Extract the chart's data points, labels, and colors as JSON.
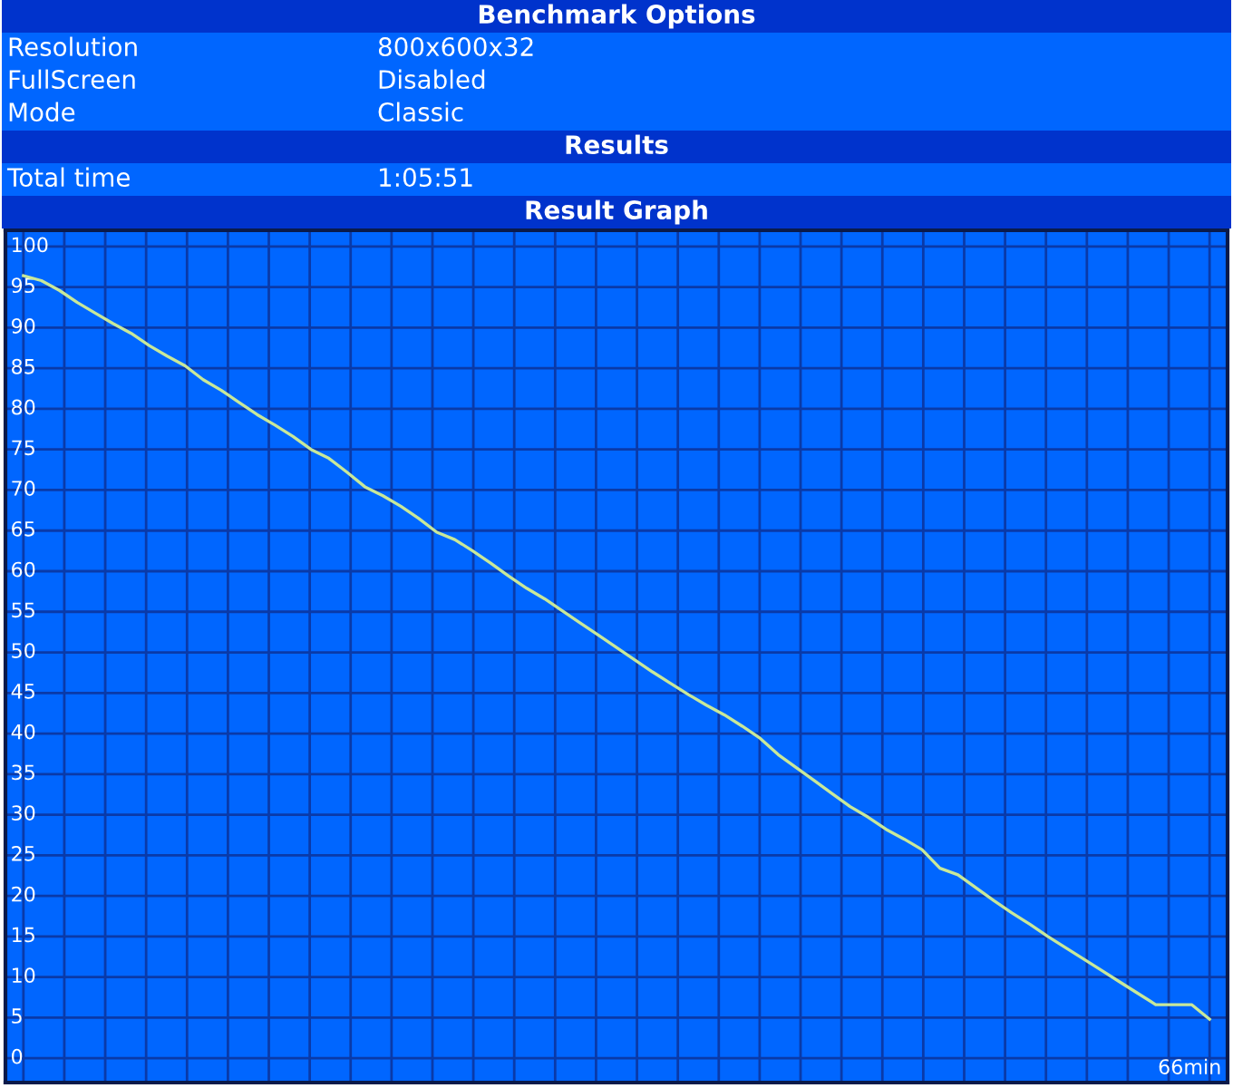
{
  "chart_data": {
    "type": "line",
    "title": "Result Graph",
    "annotations": [
      "Benchmark Options",
      "Resolution",
      "800x600x32",
      "FullScreen",
      "Disabled",
      "Mode",
      "Classic",
      "Results",
      "Total time",
      "1:05:51",
      "66min"
    ],
    "categories": [
      null,
      null,
      null,
      null,
      null,
      null,
      null,
      null,
      null,
      null,
      null,
      null,
      null,
      null,
      null,
      null,
      null,
      null,
      null,
      null,
      null,
      null,
      null,
      null,
      null,
      null,
      null,
      null,
      null,
      null,
      null,
      null,
      null,
      null,
      null,
      null,
      null,
      null,
      null,
      null,
      null,
      null,
      null,
      null,
      null,
      null,
      null,
      null,
      null,
      null,
      null,
      null,
      null,
      null,
      null,
      null,
      null,
      null,
      null,
      null,
      null,
      null,
      null,
      null,
      null,
      null,
      null
    ],
    "series": [
      {
        "color": "#c8e89a",
        "values": [
          96.4,
          95.8,
          94.6,
          93.1,
          91.8,
          90.5,
          89.3,
          87.8,
          86.5,
          85.3,
          83.6,
          82.3,
          80.8,
          79.3,
          78.0,
          76.6,
          75.0,
          73.9,
          72.2,
          70.4,
          69.3,
          68.0,
          66.5,
          64.8,
          63.9,
          62.5,
          61.0,
          59.4,
          57.9,
          56.6,
          55.1,
          53.6,
          52.1,
          50.6,
          49.1,
          47.6,
          46.2,
          44.8,
          43.5,
          42.3,
          40.9,
          39.4,
          37.4,
          35.8,
          34.2,
          32.6,
          31.0,
          29.7,
          28.2,
          27.0,
          25.7,
          23.4,
          22.6,
          21.0,
          19.4,
          17.9,
          16.5,
          15.0,
          13.6,
          12.2,
          10.8,
          9.4,
          8.0,
          6.6,
          6.6,
          6.6,
          4.8
        ]
      }
    ],
    "ylim": [
      -3,
      102
    ],
    "yticks": [
      0,
      5,
      10,
      15,
      20,
      25,
      30,
      35,
      40,
      45,
      50,
      55,
      60,
      65,
      70,
      75,
      80,
      85,
      90,
      95,
      100
    ],
    "grid": true,
    "marker": "none",
    "line_style": "solid"
  }
}
